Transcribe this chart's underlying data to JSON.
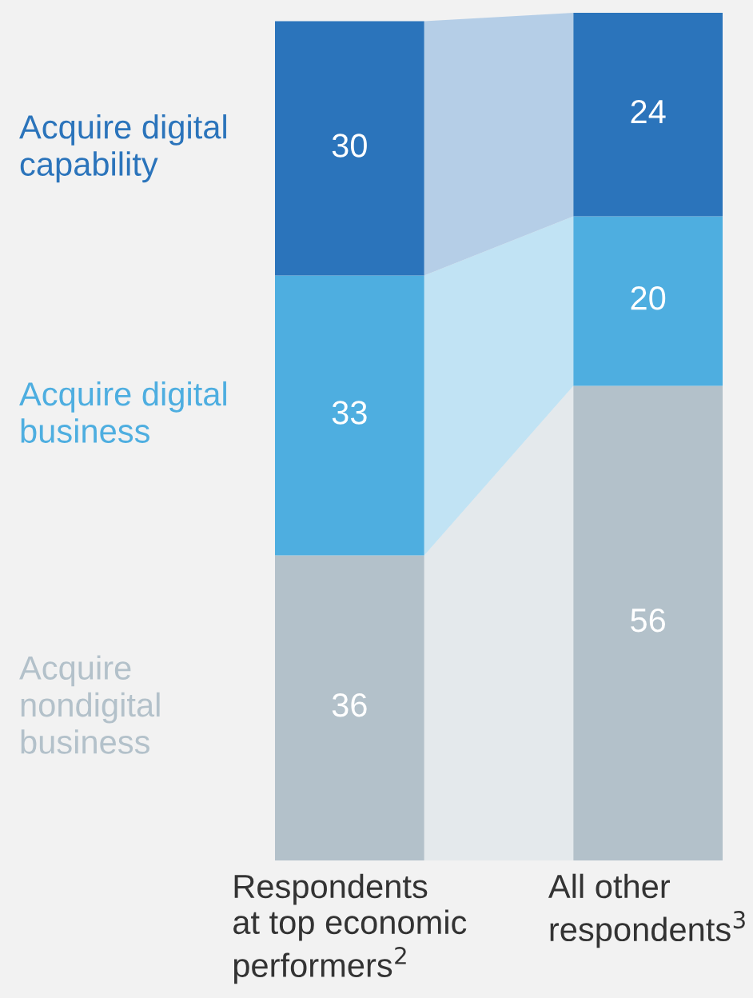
{
  "chart_data": {
    "type": "bar",
    "stacked": true,
    "data_labels": true,
    "legend": false,
    "grid": false,
    "categories": [
      "Respondents\nat top economic\nperformers$^{2}$",
      "All other\nrespondents$^{3}$"
    ],
    "series": [
      {
        "name": "Acquire\nnondigital\nbusiness",
        "color": "#b3c1ca",
        "values": [
          36,
          56
        ]
      },
      {
        "name": "Acquire digital\nbusiness",
        "color": "#4eaee0",
        "values": [
          33,
          20
        ]
      },
      {
        "name": "Acquire digital\ncapability",
        "color": "#2b74bb",
        "values": [
          30,
          24
        ]
      }
    ]
  }
}
